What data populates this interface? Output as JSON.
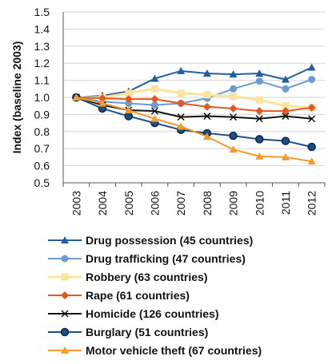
{
  "chart_data": {
    "type": "line",
    "xlabel": "",
    "ylabel": "Index (baseline 2003)",
    "ylim": [
      0.5,
      1.5
    ],
    "yticks": [
      "1.5",
      "1.4",
      "1.3",
      "1.2",
      "1.1",
      "1.0",
      "0.9",
      "0.8",
      "0.7",
      "0.6",
      "0.5"
    ],
    "x": [
      "2003",
      "2004",
      "2005",
      "2006",
      "2007",
      "2008",
      "2009",
      "2010",
      "2011",
      "2012"
    ],
    "grid": "horizontal",
    "legend_placement": "bottom",
    "series": [
      {
        "name": "Drug possession (45 countries)",
        "color": "#1f5f9f",
        "marker": "triangle",
        "values": [
          1.0,
          1.01,
          1.035,
          1.11,
          1.155,
          1.14,
          1.135,
          1.14,
          1.105,
          1.175
        ]
      },
      {
        "name": "Drug trafficking (47 countries)",
        "color": "#6b9bd0",
        "marker": "circle",
        "values": [
          1.0,
          0.975,
          0.965,
          0.955,
          0.965,
          0.995,
          1.05,
          1.095,
          1.05,
          1.105
        ]
      },
      {
        "name": "Robbery (63 countries)",
        "color": "#fbe39c",
        "marker": "square",
        "values": [
          1.0,
          1.0,
          1.025,
          1.05,
          1.025,
          1.015,
          1.005,
          0.985,
          0.95,
          0.94
        ]
      },
      {
        "name": "Rape (61 countries)",
        "color": "#e7561f",
        "marker": "diamond",
        "values": [
          1.0,
          0.995,
          0.99,
          0.99,
          0.965,
          0.945,
          0.935,
          0.92,
          0.92,
          0.94
        ]
      },
      {
        "name": "Homicide (126 countries)",
        "color": "#111111",
        "marker": "x",
        "values": [
          1.0,
          0.955,
          0.925,
          0.92,
          0.885,
          0.89,
          0.885,
          0.875,
          0.89,
          0.875
        ]
      },
      {
        "name": "Burglary (51 countries)",
        "color": "#1c4f86",
        "marker": "dot",
        "values": [
          1.0,
          0.935,
          0.89,
          0.85,
          0.81,
          0.79,
          0.775,
          0.755,
          0.745,
          0.71
        ]
      },
      {
        "name": "Motor vehicle theft (67 countries)",
        "color": "#f79a2e",
        "marker": "triangle",
        "values": [
          1.0,
          0.965,
          0.925,
          0.875,
          0.83,
          0.77,
          0.695,
          0.655,
          0.65,
          0.625
        ]
      }
    ]
  }
}
